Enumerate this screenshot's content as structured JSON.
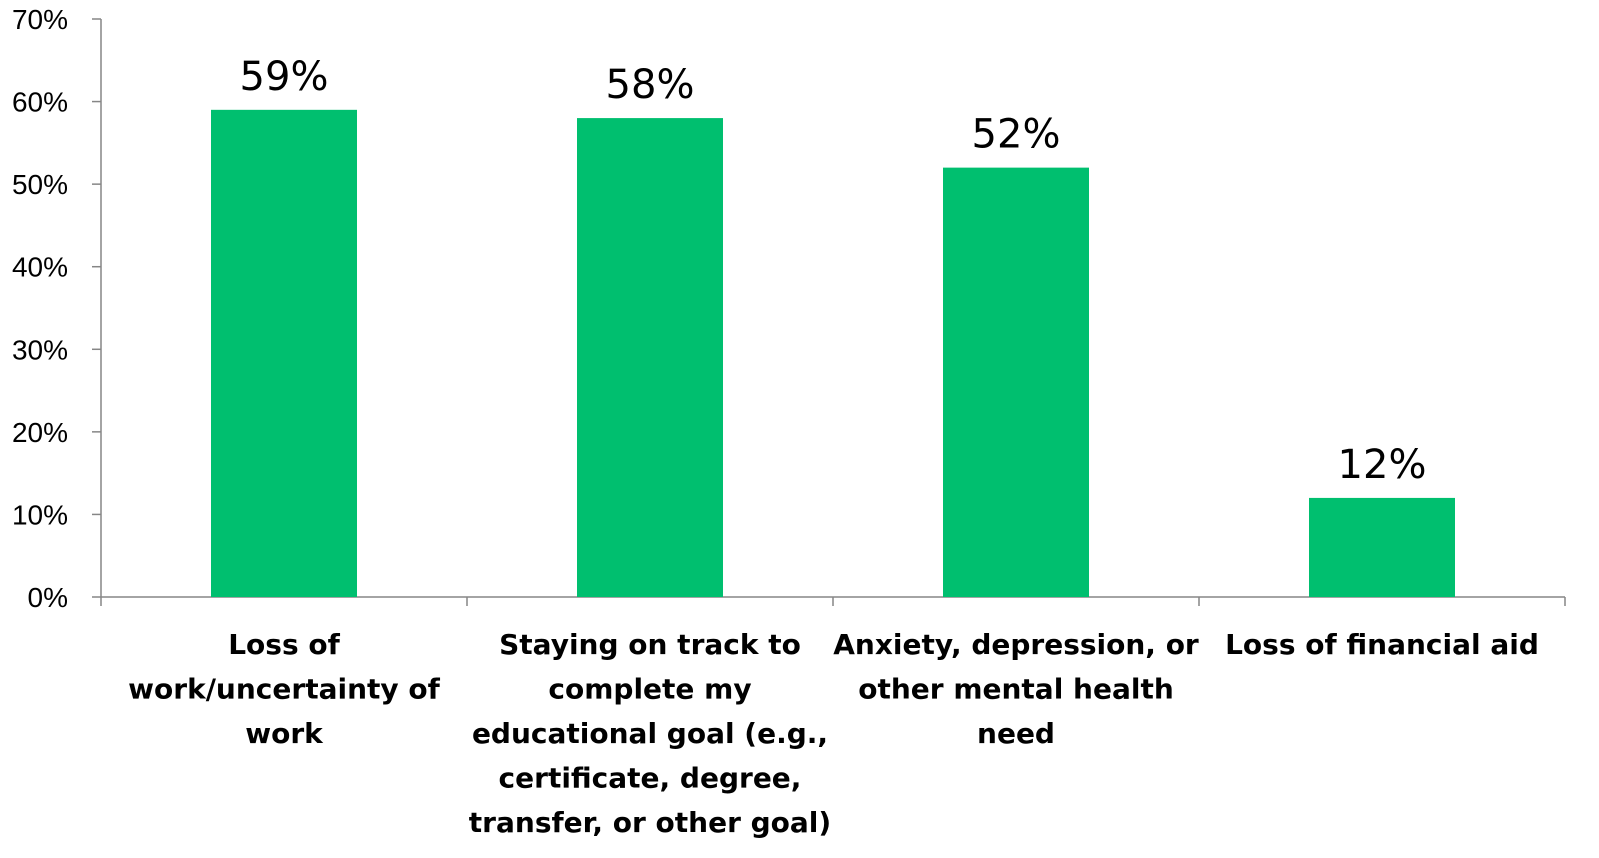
{
  "chart_data": {
    "type": "bar",
    "title": "",
    "xlabel": "",
    "ylabel": "",
    "ylim": [
      0,
      70
    ],
    "yticks": [
      0,
      10,
      20,
      30,
      40,
      50,
      60,
      70
    ],
    "ytick_labels": [
      "0%",
      "10%",
      "20%",
      "30%",
      "40%",
      "50%",
      "60%",
      "70%"
    ],
    "grid": false,
    "legend": "none",
    "bar_color": "#00BF6F",
    "categories": [
      [
        "Loss of",
        "work/uncertainty of",
        "work"
      ],
      [
        "Staying on track to",
        "complete my",
        "educational goal (e.g.,",
        "certificate, degree,",
        "transfer, or other goal)"
      ],
      [
        "Anxiety, depression, or",
        "other mental health",
        "need"
      ],
      [
        "Loss of financial aid"
      ]
    ],
    "values": [
      59,
      58,
      52,
      12
    ],
    "data_labels": [
      "59%",
      "58%",
      "52%",
      "12%"
    ]
  }
}
